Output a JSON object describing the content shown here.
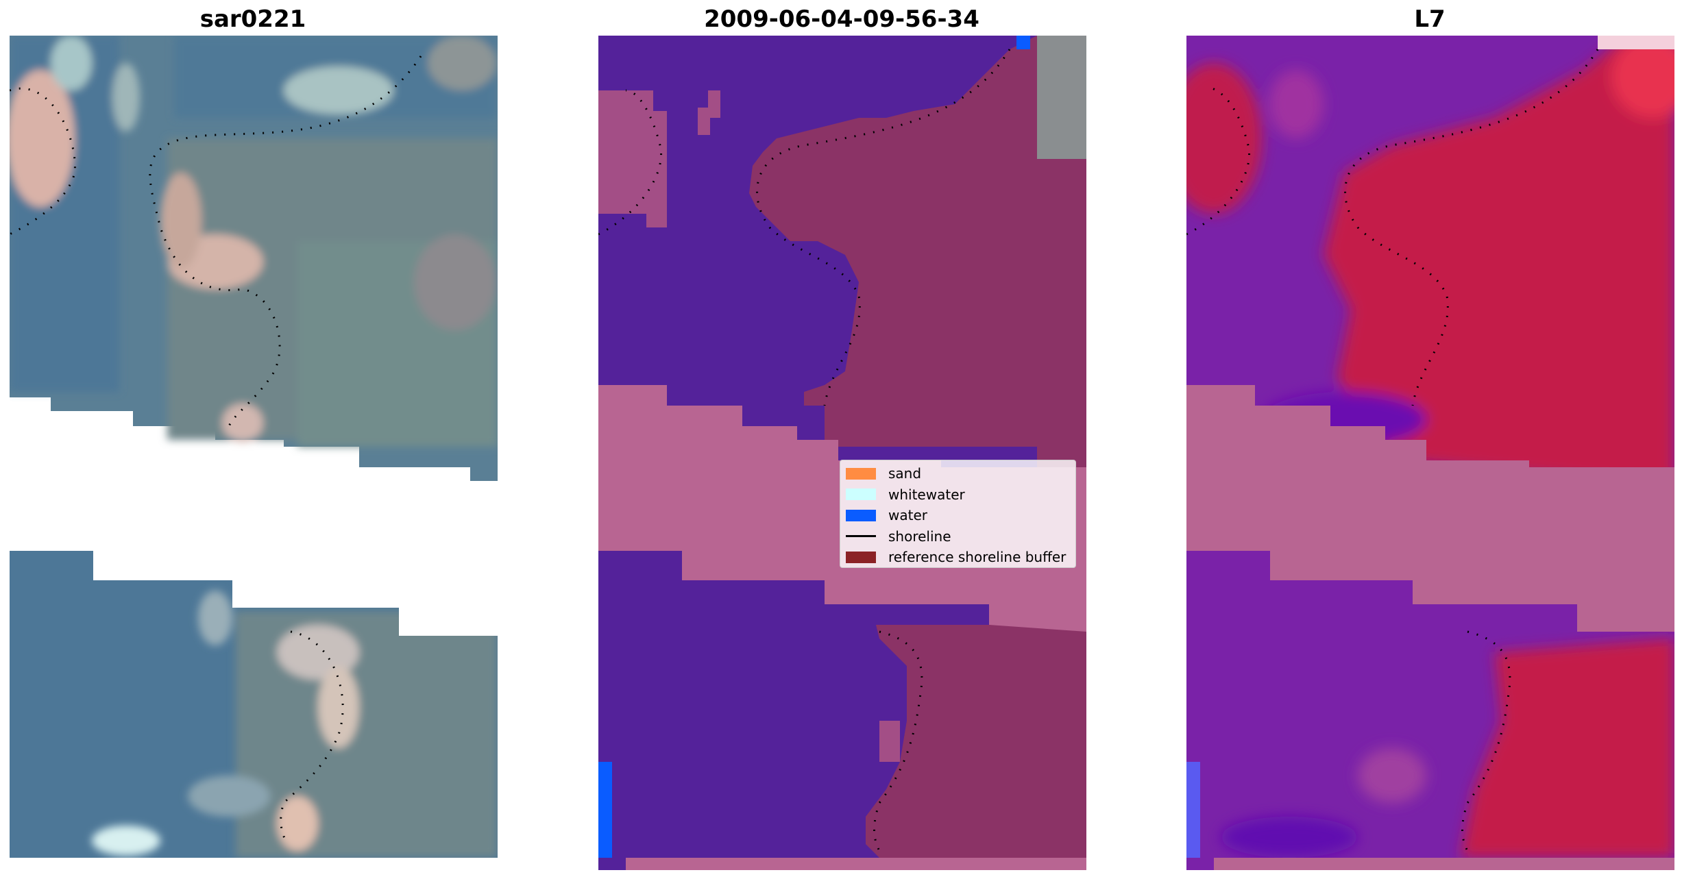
{
  "panels": [
    {
      "title": "sar0221"
    },
    {
      "title": "2009-06-04-09-56-34"
    },
    {
      "title": "L7"
    }
  ],
  "legend": {
    "items": [
      {
        "label": "sand",
        "color": "#ff8c42",
        "kind": "patch"
      },
      {
        "label": "whitewater",
        "color": "#ccffff",
        "kind": "patch"
      },
      {
        "label": "water",
        "color": "#0a5cff",
        "kind": "patch"
      },
      {
        "label": "shoreline",
        "color": "#000000",
        "kind": "line"
      },
      {
        "label": "reference shoreline buffer",
        "color": "#8b2226",
        "kind": "patch"
      }
    ]
  },
  "colors": {
    "buffer_band": "#b86592",
    "water_class": "#54229a",
    "land_overlay": "#8b3366",
    "l7_water": "#7a22a8",
    "l7_land": "#c41a48",
    "rgb_water": "#4d7797",
    "rgb_land": "#6f858a"
  }
}
